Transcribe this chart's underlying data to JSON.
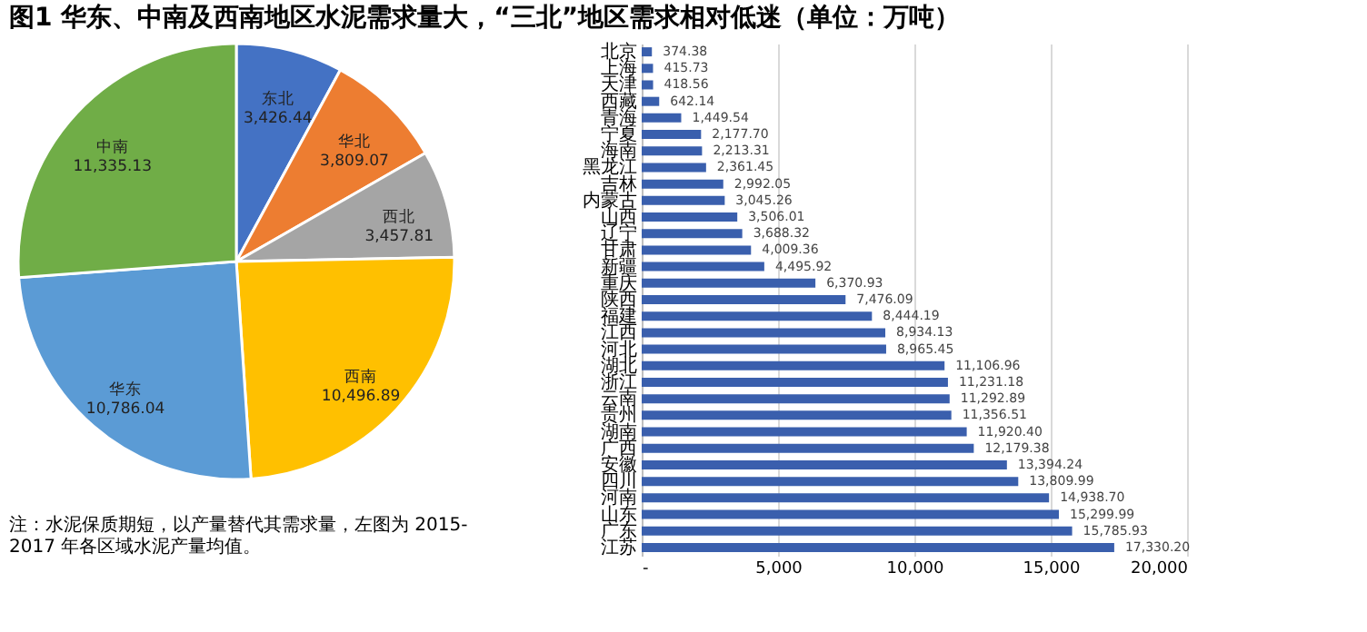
{
  "chart_data": [
    {
      "type": "pie",
      "title": "图1  华东、中南及西南地区水泥需求量大，“三北”地区需求相对低迷（单位：万吨）",
      "categories": [
        "东北",
        "华北",
        "西北",
        "西南",
        "华东",
        "中南"
      ],
      "values": [
        3426.44,
        3809.07,
        3457.81,
        10496.89,
        10786.04,
        11335.13
      ],
      "colors": [
        "#4472c4",
        "#ed7d31",
        "#a5a5a5",
        "#ffc000",
        "#5b9bd5",
        "#70ad47"
      ],
      "value_labels": [
        "3,426.44",
        "3,809.07",
        "3,457.81",
        "10,496.89",
        "10,786.04",
        "11,335.13"
      ],
      "annotations": [
        "注：水泥保质期短，以产量替代其需求量，左图为 2015-2017 年各区域水泥产量均值。"
      ]
    },
    {
      "type": "bar",
      "orientation": "horizontal",
      "categories": [
        "北京",
        "上海",
        "天津",
        "西藏",
        "青海",
        "宁夏",
        "海南",
        "黑龙江",
        "吉林",
        "内蒙古",
        "山西",
        "辽宁",
        "甘肃",
        "新疆",
        "重庆",
        "陕西",
        "福建",
        "江西",
        "河北",
        "湖北",
        "浙江",
        "云南",
        "贵州",
        "湖南",
        "广西",
        "安徽",
        "四川",
        "河南",
        "山东",
        "广东",
        "江苏"
      ],
      "values": [
        374.38,
        415.73,
        418.56,
        642.14,
        1449.54,
        2177.7,
        2213.31,
        2361.45,
        2992.05,
        3045.26,
        3506.01,
        3688.32,
        4009.36,
        4495.92,
        6370.93,
        7476.09,
        8444.19,
        8934.13,
        8965.45,
        11106.96,
        11231.18,
        11292.89,
        11356.51,
        11920.4,
        12179.38,
        13394.24,
        13809.99,
        14938.7,
        15299.99,
        15785.93,
        17330.2
      ],
      "value_labels": [
        "374.38",
        "415.73",
        "418.56",
        "642.14",
        "1,449.54",
        "2,177.70",
        "2,213.31",
        "2,361.45",
        "2,992.05",
        "3,045.26",
        "3,506.01",
        "3,688.32",
        "4,009.36",
        "4,495.92",
        "6,370.93",
        "7,476.09",
        "8,444.19",
        "8,934.13",
        "8,965.45",
        "11,106.96",
        "11,231.18",
        "11,292.89",
        "11,356.51",
        "11,920.40",
        "12,179.38",
        "13,394.24",
        "13,809.99",
        "14,938.70",
        "15,299.99",
        "15,785.93",
        "17,330.20"
      ],
      "color": "#3a5fad",
      "xlim": [
        0,
        20000
      ],
      "xticks": [
        {
          "value": 0,
          "label": "-"
        },
        {
          "value": 5000,
          "label": "5,000"
        },
        {
          "value": 10000,
          "label": "10,000"
        },
        {
          "value": 15000,
          "label": "15,000"
        },
        {
          "value": 20000,
          "label": "20,000"
        }
      ],
      "grid": "x"
    }
  ]
}
